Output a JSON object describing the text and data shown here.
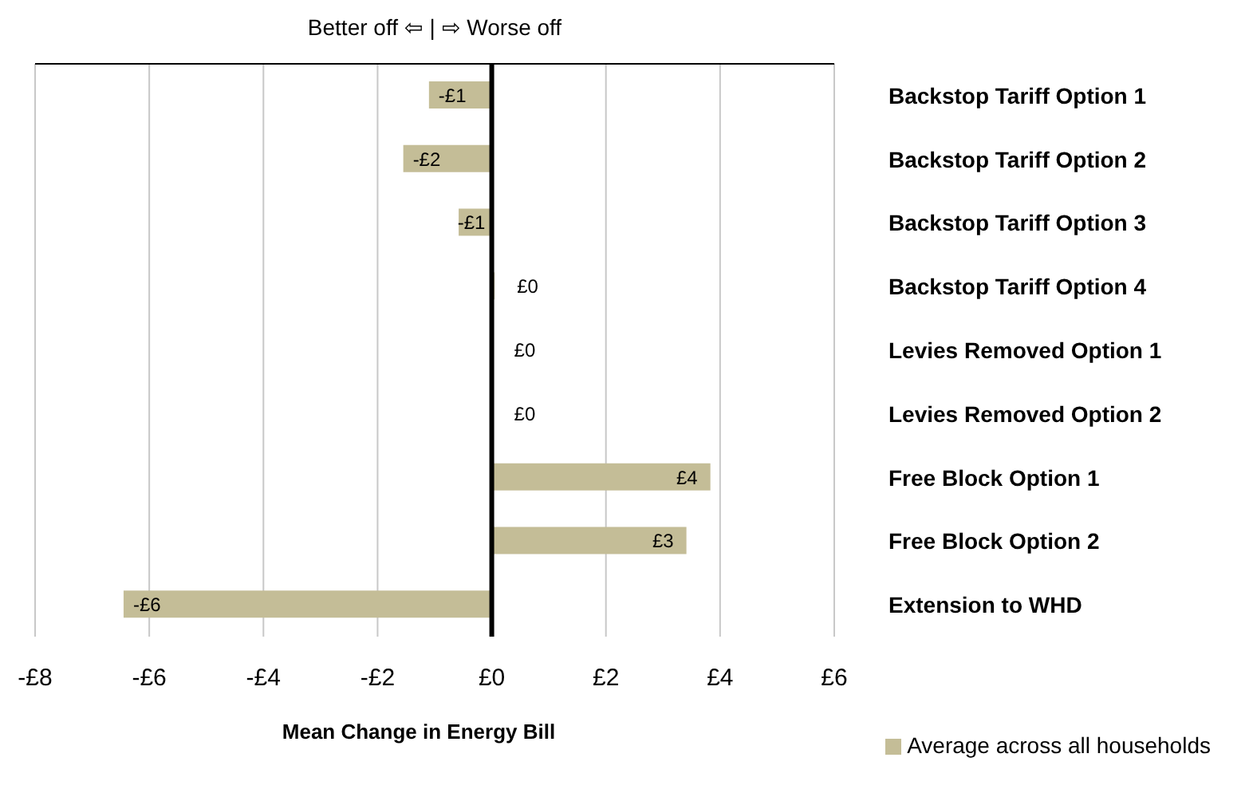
{
  "chart_data": {
    "type": "bar",
    "orientation": "horizontal",
    "xlabel": "Mean Change in Energy Bill",
    "annotations": [
      "Better off ⇦ | ⇨ Worse off"
    ],
    "categories": [
      "Backstop Tariff Option 1",
      "Backstop Tariff Option 2",
      "Backstop Tariff Option 3",
      "Backstop Tariff Option 4",
      "Levies Removed Option 1",
      "Levies Removed Option 2",
      "Free Block Option 1",
      "Free Block Option 2",
      "Extension to WHD"
    ],
    "series": [
      {
        "name": "Average across all households",
        "color": "#c4bd97",
        "values": [
          -1.1,
          -1.55,
          -0.58,
          0.05,
          0,
          0,
          3.83,
          3.41,
          -6.45
        ],
        "value_labels": [
          "-£1",
          "-£2",
          "-£1",
          "£0",
          "£0",
          "£0",
          "£4",
          "£3",
          "-£6"
        ]
      }
    ],
    "xlim": [
      -8,
      6
    ],
    "xticks": [
      {
        "value": -8,
        "label": "-£8"
      },
      {
        "value": -6,
        "label": "-£6"
      },
      {
        "value": -4,
        "label": "-£4"
      },
      {
        "value": -2,
        "label": "-£2"
      },
      {
        "value": 0,
        "label": "£0"
      },
      {
        "value": 2,
        "label": "£2"
      },
      {
        "value": 4,
        "label": "£4"
      },
      {
        "value": 6,
        "label": "£6"
      }
    ],
    "grid": "x",
    "legend": "bottom right"
  }
}
